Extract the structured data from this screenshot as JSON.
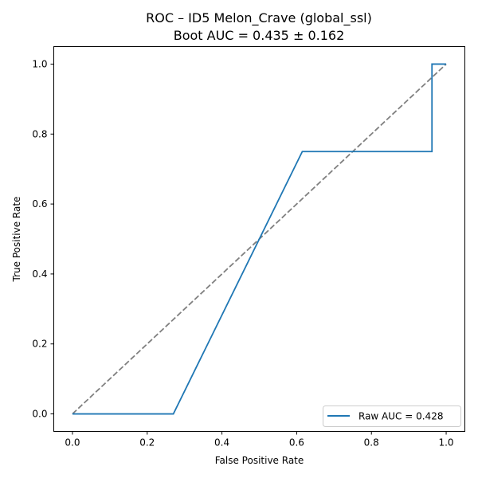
{
  "chart_data": {
    "type": "line",
    "title": "ROC – ID5 Melon_Crave (global_ssl)",
    "subtitle": "Boot AUC = 0.435 ± 0.162",
    "xlabel": "False Positive Rate",
    "ylabel": "True Positive Rate",
    "xlim": [
      -0.05,
      1.05
    ],
    "ylim": [
      -0.05,
      1.05
    ],
    "xticks": [
      "0.0",
      "0.2",
      "0.4",
      "0.6",
      "0.8",
      "1.0"
    ],
    "yticks": [
      "0.0",
      "0.2",
      "0.4",
      "0.6",
      "0.8",
      "1.0"
    ],
    "grid": false,
    "legend_position": "lower-right",
    "series": [
      {
        "name": "Raw AUC = 0.428",
        "color": "#1f77b4",
        "style": "solid",
        "x": [
          0.0,
          0.27,
          0.615,
          0.962,
          0.962,
          1.0
        ],
        "y": [
          0.0,
          0.0,
          0.75,
          0.75,
          1.0,
          1.0
        ]
      },
      {
        "color": "#808080",
        "style": "dashed",
        "x": [
          0.0,
          1.0
        ],
        "y": [
          0.0,
          1.0
        ]
      }
    ]
  }
}
